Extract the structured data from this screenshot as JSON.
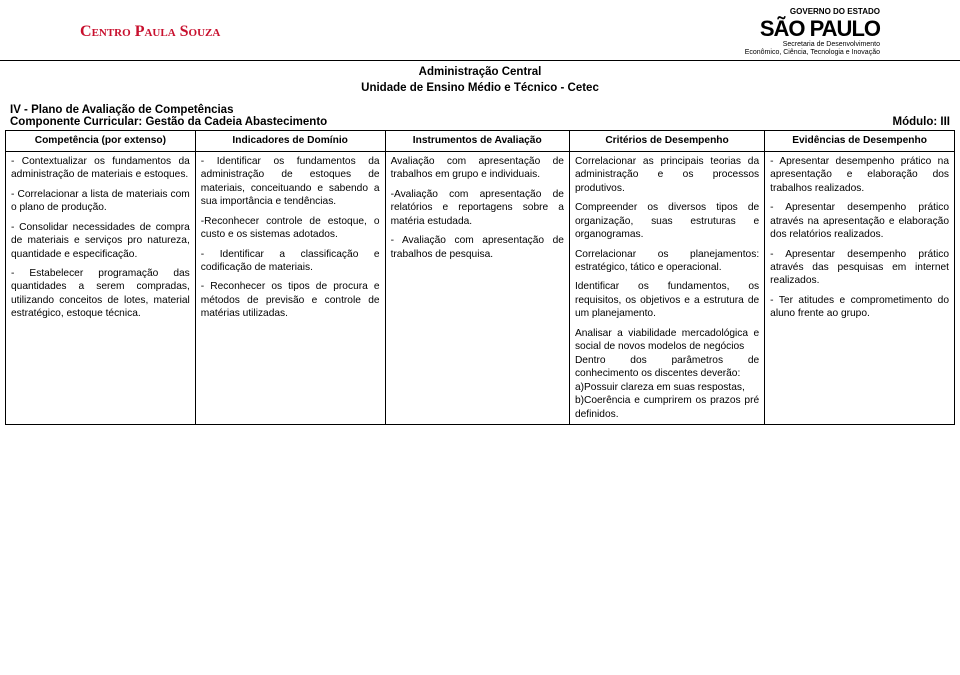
{
  "logo_left_main": "Centro Paula Souza",
  "logo_right": {
    "gov": "GOVERNO DO ESTADO",
    "sp": "SÃO PAULO",
    "sec1": "Secretaria de Desenvolvimento",
    "sec2": "Econômico, Ciência, Tecnologia e Inovação"
  },
  "subheader_line1": "Administração Central",
  "subheader_line2": "Unidade de Ensino Médio e Técnico - Cetec",
  "section_title": "IV - Plano de Avaliação de Competências",
  "module_left": "Componente Curricular: Gestão da Cadeia Abastecimento",
  "module_right": "Módulo: III",
  "headers": {
    "competencia": "Competência (por extenso)",
    "indicadores": "Indicadores de Domínio",
    "instrumentos": "Instrumentos de Avaliação",
    "criterios": "Critérios de Desempenho",
    "evidencias": "Evidências de Desempenho"
  },
  "col1": {
    "p1": "- Contextualizar os fundamentos da administração de materiais e estoques.",
    "p2": "- Correlacionar a lista de materiais com o plano de produção.",
    "p3": "- Consolidar necessidades de compra de materiais e serviços pro natureza, quantidade e especificação.",
    "p4": "- Estabelecer programação das quantidades a serem compradas, utilizando conceitos de lotes, material estratégico, estoque técnica."
  },
  "col2": {
    "p1": "- Identificar os fundamentos da administração de estoques de materiais, conceituando e sabendo a sua importância e tendências.",
    "p2": "-Reconhecer controle de estoque, o custo e os sistemas adotados.",
    "p3": "- Identificar a classificação e codificação de materiais.",
    "p4": "- Reconhecer os tipos de procura e métodos de previsão e controle de matérias utilizadas."
  },
  "col3": {
    "p1": "Avaliação com apresentação de trabalhos em grupo e individuais.",
    "p2": "-Avaliação com apresentação de relatórios e reportagens sobre a matéria estudada.",
    "p3": "- Avaliação com apresentação de trabalhos de pesquisa."
  },
  "col4": {
    "p1": "Correlacionar as principais teorias da administração e os processos produtivos.",
    "p2": "Compreender os diversos tipos de organização, suas estruturas e organogramas.",
    "p3": "Correlacionar os planejamentos: estratégico, tático e operacional.",
    "p4": "Identificar os fundamentos, os requisitos, os objetivos e a estrutura de um planejamento.",
    "p5": "Analisar a viabilidade mercadológica e social de novos modelos de negócios",
    "p6": "Dentro dos parâmetros de conhecimento os discentes deverão:",
    "p7": "a)Possuir clareza em suas respostas,",
    "p8": "b)Coerência e cumprirem os prazos pré definidos."
  },
  "col5": {
    "p1": "- Apresentar desempenho prático na apresentação e elaboração dos trabalhos realizados.",
    "p2": "- Apresentar desempenho prático através na apresentação e elaboração dos relatórios realizados.",
    "p3": "- Apresentar desempenho prático através das pesquisas em internet realizados.",
    "p4": "- Ter atitudes e comprometimento do aluno frente ao grupo."
  }
}
